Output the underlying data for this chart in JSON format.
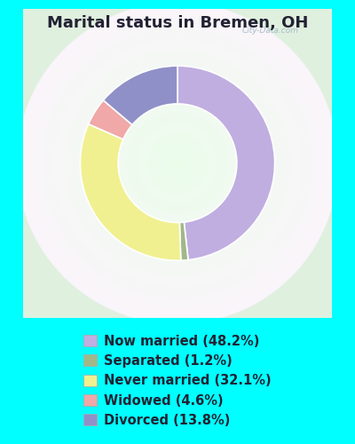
{
  "title": "Marital status in Bremen, OH",
  "slices": [
    {
      "label": "Now married (48.2%)",
      "value": 48.2,
      "color": "#c0aee0"
    },
    {
      "label": "Separated (1.2%)",
      "value": 1.2,
      "color": "#a0b888"
    },
    {
      "label": "Never married (32.1%)",
      "value": 32.1,
      "color": "#f0f090"
    },
    {
      "label": "Widowed (4.6%)",
      "value": 4.6,
      "color": "#f0a8a8"
    },
    {
      "label": "Divorced (13.8%)",
      "value": 13.8,
      "color": "#9090c8"
    }
  ],
  "background_color": "#00ffff",
  "chart_bg_color": "#dff0df",
  "watermark": "City-Data.com",
  "title_color": "#222233",
  "legend_text_color": "#222233",
  "title_fontsize": 13,
  "legend_fontsize": 10.5,
  "donut_outer_r": 0.82,
  "donut_inner_r": 0.5,
  "figsize": [
    4.0,
    5.0
  ],
  "dpi": 100
}
